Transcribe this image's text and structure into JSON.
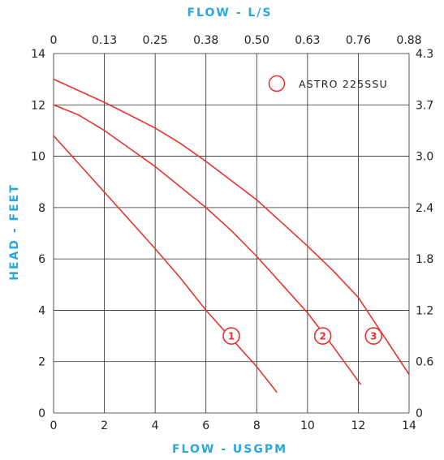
{
  "chart_data": {
    "type": "line",
    "title": "",
    "xlabel_bottom": "FLOW - USGPM",
    "xlabel_top": "FLOW - L/S",
    "ylabel_left": "HEAD - FEET",
    "xlim": [
      0,
      14
    ],
    "ylim": [
      0,
      14
    ],
    "x_ticks_bottom": [
      "0",
      "2",
      "4",
      "6",
      "8",
      "10",
      "12",
      "14"
    ],
    "x_ticks_top": [
      "0",
      "0.13",
      "0.25",
      "0.38",
      "0.50",
      "0.63",
      "0.76",
      "0.88"
    ],
    "y_ticks_left": [
      "0",
      "2",
      "4",
      "6",
      "8",
      "10",
      "12",
      "14"
    ],
    "y_ticks_right": [
      "0",
      "0.6",
      "1.2",
      "1.8",
      "2.4",
      "3.0",
      "3.7",
      "4.3"
    ],
    "grid": true,
    "legend": {
      "label": "ASTRO 225SSU",
      "position": "top-right"
    },
    "series": [
      {
        "label": "1",
        "label_at": [
          7.0,
          3.0
        ],
        "x": [
          0,
          1,
          2,
          3,
          4,
          5,
          6,
          7,
          8,
          8.8
        ],
        "y": [
          10.8,
          9.7,
          8.6,
          7.5,
          6.4,
          5.25,
          4.0,
          2.9,
          1.8,
          0.8
        ]
      },
      {
        "label": "2",
        "label_at": [
          10.6,
          3.0
        ],
        "x": [
          0,
          1,
          2,
          3,
          4,
          5,
          6,
          7,
          8,
          9,
          10,
          11,
          12.1
        ],
        "y": [
          12.0,
          11.6,
          11.0,
          10.3,
          9.6,
          8.8,
          8.0,
          7.1,
          6.1,
          5.0,
          3.9,
          2.6,
          1.1
        ]
      },
      {
        "label": "3",
        "label_at": [
          12.6,
          3.0
        ],
        "x": [
          0,
          1,
          2,
          3,
          4,
          5,
          6,
          7,
          8,
          9,
          10,
          11,
          12,
          13,
          14
        ],
        "y": [
          13.0,
          12.55,
          12.1,
          11.6,
          11.1,
          10.5,
          9.8,
          9.05,
          8.3,
          7.4,
          6.5,
          5.55,
          4.5,
          3.0,
          1.5
        ]
      }
    ]
  },
  "colors": {
    "curve": "#e8322e",
    "axis_title": "#29a8e0",
    "grid": "#2a2a2a",
    "text": "#222222"
  }
}
